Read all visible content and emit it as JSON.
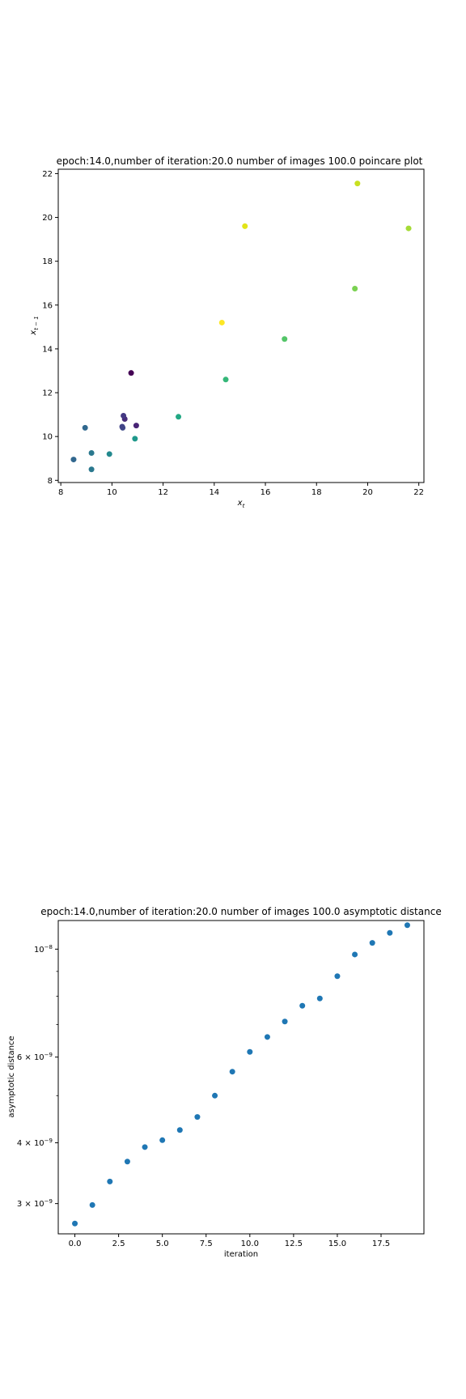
{
  "chart_data": [
    {
      "type": "scatter",
      "title": "epoch:14.0,number of iteration:20.0 number of images 100.0 poincare plot",
      "xlabel": "x_t",
      "ylabel": "x_{t-1}",
      "xlim": [
        7.9,
        22.2
      ],
      "ylim": [
        7.9,
        22.2
      ],
      "xticks": [
        8,
        10,
        12,
        14,
        16,
        18,
        20,
        22
      ],
      "yticks": [
        8,
        10,
        12,
        14,
        16,
        18,
        20,
        22
      ],
      "colormap": "viridis",
      "points": [
        {
          "x": 10.75,
          "y": 12.9,
          "color": "#440154"
        },
        {
          "x": 10.95,
          "y": 10.5,
          "color": "#482475"
        },
        {
          "x": 10.5,
          "y": 10.8,
          "color": "#472c7a"
        },
        {
          "x": 10.45,
          "y": 10.95,
          "color": "#443983"
        },
        {
          "x": 10.42,
          "y": 10.4,
          "color": "#3e4a89"
        },
        {
          "x": 10.4,
          "y": 10.45,
          "color": "#414487"
        },
        {
          "x": 8.95,
          "y": 10.4,
          "color": "#30688e"
        },
        {
          "x": 8.5,
          "y": 8.95,
          "color": "#31678e"
        },
        {
          "x": 9.2,
          "y": 8.5,
          "color": "#2a788e"
        },
        {
          "x": 9.2,
          "y": 9.25,
          "color": "#2a788e"
        },
        {
          "x": 9.9,
          "y": 9.2,
          "color": "#23898e"
        },
        {
          "x": 10.9,
          "y": 9.9,
          "color": "#1f988b"
        },
        {
          "x": 12.6,
          "y": 10.9,
          "color": "#22a884"
        },
        {
          "x": 14.45,
          "y": 12.6,
          "color": "#35b779"
        },
        {
          "x": 16.75,
          "y": 14.45,
          "color": "#54c568"
        },
        {
          "x": 19.5,
          "y": 16.75,
          "color": "#7ad151"
        },
        {
          "x": 21.6,
          "y": 19.5,
          "color": "#a5db36"
        },
        {
          "x": 19.6,
          "y": 21.55,
          "color": "#c8e020"
        },
        {
          "x": 15.2,
          "y": 19.6,
          "color": "#e2e418"
        },
        {
          "x": 14.3,
          "y": 15.2,
          "color": "#fde725"
        }
      ]
    },
    {
      "type": "scatter",
      "title": "epoch:14.0,number of iteration:20.0  number of images 100.0 asymptotic distance",
      "xlabel": "iteration",
      "ylabel": "asymptotic distance",
      "yscale": "log",
      "xlim": [
        -0.95,
        19.95
      ],
      "ylim": [
        2.6e-09,
        1.145e-08
      ],
      "xticks": [
        0.0,
        2.5,
        5.0,
        7.5,
        10.0,
        12.5,
        15.0,
        17.5
      ],
      "xticklabels": [
        "0.0",
        "2.5",
        "5.0",
        "7.5",
        "10.0",
        "12.5",
        "15.0",
        "17.5"
      ],
      "yticks": [
        3e-09,
        4e-09,
        6e-09,
        1e-08
      ],
      "yticklabels": [
        {
          "mant": "3",
          "exp": "−9"
        },
        {
          "mant": "4",
          "exp": "−9"
        },
        {
          "mant": "6",
          "exp": "−9"
        },
        {
          "mant": "",
          "exp": "−8"
        }
      ],
      "yminorticks": [
        5e-09,
        7e-09,
        8e-09,
        9e-09
      ],
      "marker_color": "#1f77b4",
      "x": [
        0,
        1,
        2,
        3,
        4,
        5,
        6,
        7,
        8,
        9,
        10,
        11,
        12,
        13,
        14,
        15,
        16,
        17,
        18,
        19
      ],
      "y": [
        2.73e-09,
        2.98e-09,
        3.33e-09,
        3.66e-09,
        3.92e-09,
        4.05e-09,
        4.25e-09,
        4.52e-09,
        5e-09,
        5.6e-09,
        6.15e-09,
        6.6e-09,
        7.1e-09,
        7.65e-09,
        7.92e-09,
        8.8e-09,
        9.75e-09,
        1.03e-08,
        1.08e-08,
        1.12e-08
      ]
    }
  ]
}
